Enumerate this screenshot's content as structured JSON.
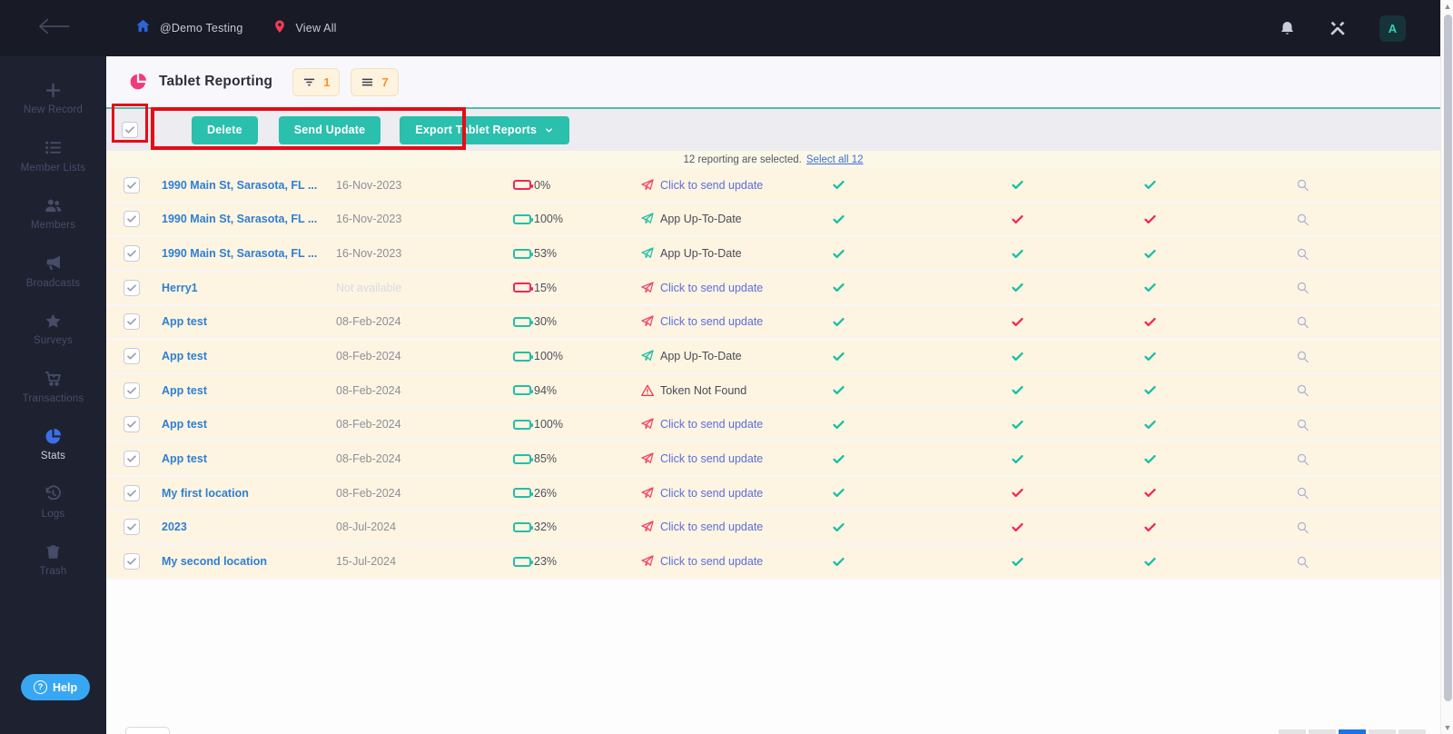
{
  "navbar": {
    "workspace": "@Demo Testing",
    "view_all": "View All",
    "avatar_letter": "A"
  },
  "sidebar": {
    "items": [
      {
        "label": "New Record",
        "icon": "plus-icon",
        "active": false
      },
      {
        "label": "Member Lists",
        "icon": "list-icon",
        "active": false
      },
      {
        "label": "Members",
        "icon": "members-icon",
        "active": false
      },
      {
        "label": "Broadcasts",
        "icon": "megaphone-icon",
        "active": false
      },
      {
        "label": "Surveys",
        "icon": "star-icon",
        "active": false
      },
      {
        "label": "Transactions",
        "icon": "cart-icon",
        "active": false
      },
      {
        "label": "Stats",
        "icon": "pie-chart-icon",
        "active": true
      },
      {
        "label": "Logs",
        "icon": "history-icon",
        "active": false
      },
      {
        "label": "Trash",
        "icon": "trash-icon",
        "active": false
      }
    ],
    "help_label": "Help"
  },
  "header": {
    "title": "Tablet Reporting",
    "filter_count": "1",
    "list_count": "7"
  },
  "toolbar": {
    "delete": "Delete",
    "send_update": "Send Update",
    "export": "Export Tablet Reports"
  },
  "selection_bar": {
    "message": "12 reporting are selected.",
    "select_all_link": "Select all 12"
  },
  "table": {
    "rows": [
      {
        "name": "1990 Main St, Sarasota, FL ...",
        "date": "16-Nov-2023",
        "date_muted": false,
        "battery": "0%",
        "level": 0,
        "battery_color": "pink",
        "status": "Click to send update",
        "status_type": "update",
        "checks": [
          "teal",
          "teal",
          "teal"
        ]
      },
      {
        "name": "1990 Main St, Sarasota, FL ...",
        "date": "16-Nov-2023",
        "date_muted": false,
        "battery": "100%",
        "level": 100,
        "battery_color": "teal",
        "status": "App Up-To-Date",
        "status_type": "uptodate",
        "checks": [
          "teal",
          "pink",
          "pink"
        ]
      },
      {
        "name": "1990 Main St, Sarasota, FL ...",
        "date": "16-Nov-2023",
        "date_muted": false,
        "battery": "53%",
        "level": 53,
        "battery_color": "teal",
        "status": "App Up-To-Date",
        "status_type": "uptodate",
        "checks": [
          "teal",
          "teal",
          "teal"
        ]
      },
      {
        "name": "Herry1",
        "date": "Not available",
        "date_muted": true,
        "battery": "15%",
        "level": 15,
        "battery_color": "pink",
        "status": "Click to send update",
        "status_type": "update",
        "checks": [
          "teal",
          "teal",
          "teal"
        ]
      },
      {
        "name": "App test",
        "date": "08-Feb-2024",
        "date_muted": false,
        "battery": "30%",
        "level": 30,
        "battery_color": "teal",
        "status": "Click to send update",
        "status_type": "update",
        "checks": [
          "teal",
          "pink",
          "pink"
        ]
      },
      {
        "name": "App test",
        "date": "08-Feb-2024",
        "date_muted": false,
        "battery": "100%",
        "level": 100,
        "battery_color": "teal",
        "status": "App Up-To-Date",
        "status_type": "uptodate",
        "checks": [
          "teal",
          "teal",
          "teal"
        ]
      },
      {
        "name": "App test",
        "date": "08-Feb-2024",
        "date_muted": false,
        "battery": "94%",
        "level": 94,
        "battery_color": "teal",
        "status": "Token Not Found",
        "status_type": "token",
        "checks": [
          "teal",
          "teal",
          "teal"
        ]
      },
      {
        "name": "App test",
        "date": "08-Feb-2024",
        "date_muted": false,
        "battery": "100%",
        "level": 100,
        "battery_color": "teal",
        "status": "Click to send update",
        "status_type": "update",
        "checks": [
          "teal",
          "teal",
          "teal"
        ]
      },
      {
        "name": "App test",
        "date": "08-Feb-2024",
        "date_muted": false,
        "battery": "85%",
        "level": 85,
        "battery_color": "teal",
        "status": "Click to send update",
        "status_type": "update",
        "checks": [
          "teal",
          "teal",
          "teal"
        ]
      },
      {
        "name": "My first location",
        "date": "08-Feb-2024",
        "date_muted": false,
        "battery": "26%",
        "level": 26,
        "battery_color": "teal",
        "status": "Click to send update",
        "status_type": "update",
        "checks": [
          "teal",
          "pink",
          "pink"
        ]
      },
      {
        "name": "2023",
        "date": "08-Jul-2024",
        "date_muted": false,
        "battery": "32%",
        "level": 32,
        "battery_color": "teal",
        "status": "Click to send update",
        "status_type": "update",
        "checks": [
          "teal",
          "pink",
          "pink"
        ]
      },
      {
        "name": "My second location",
        "date": "15-Jul-2024",
        "date_muted": false,
        "battery": "23%",
        "level": 23,
        "battery_color": "teal",
        "status": "Click to send update",
        "status_type": "update",
        "checks": [
          "teal",
          "teal",
          "teal"
        ]
      }
    ]
  },
  "icons": {
    "back-arrow-icon": "long left arrow",
    "home-icon": "blue house",
    "location-pin-icon": "pink map pin",
    "bell-icon": "notification bell",
    "tools-icon": "crossed wrench and screwdriver",
    "pie-chart-icon": "pink pie chart",
    "filter-icon": "funnel lines",
    "hamburger-icon": "three lines",
    "send-plane-icon": "paper plane",
    "warning-icon": "alert triangle",
    "check-icon": "check mark",
    "magnifier-icon": "magnifying glass",
    "chevron-down-icon": "caret down"
  },
  "colors": {
    "navbar_bg": "#181a26",
    "sidebar_bg": "#1e2130",
    "accent_teal": "#2bbfad",
    "accent_pink": "#f2255c",
    "accent_blue": "#3a70e8",
    "annotation_red": "#e60b17",
    "row_cream": "#fdf5e1",
    "badge_cream": "#fdf3de",
    "badge_count_orange": "#f0932f",
    "link_blue": "#2f7fd3",
    "status_link_blue": "#5b6de0",
    "help_blue": "#38a7f3"
  }
}
